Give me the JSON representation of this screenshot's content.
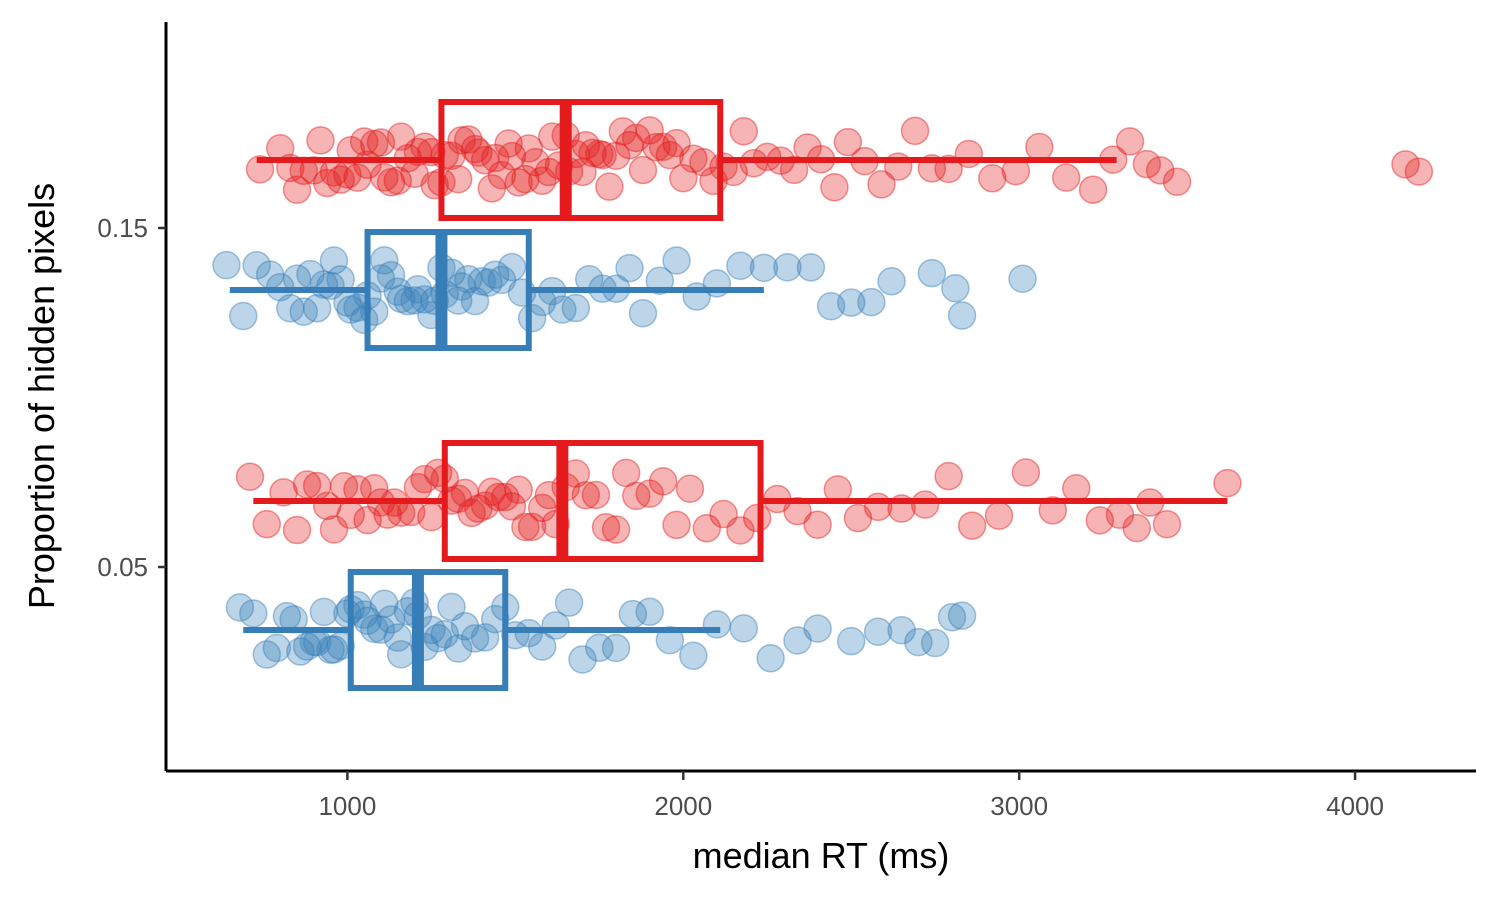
{
  "chart_data": {
    "type": "scatter",
    "subtype": "horizontal-boxplot-with-jittered-points",
    "title": "",
    "xlabel": "median RT (ms)",
    "ylabel": "Proportion of hidden pixels",
    "xlim": [
      460,
      4360
    ],
    "x_ticks": [
      1000,
      2000,
      3000,
      4000
    ],
    "y_ticks": [
      "0.15",
      "0.05"
    ],
    "grid": false,
    "legend": "none",
    "colors": {
      "red": "#e41a1c",
      "blue": "#377eb8"
    },
    "groups": [
      {
        "proportion": "0.15",
        "color_key": "red",
        "box": {
          "whisker_low": 730,
          "q1": 1280,
          "median": 1650,
          "q3": 2110,
          "whisker_high": 3290
        },
        "points": [
          740,
          800,
          830,
          850,
          870,
          900,
          920,
          940,
          960,
          980,
          1000,
          1010,
          1030,
          1050,
          1060,
          1080,
          1100,
          1110,
          1130,
          1150,
          1160,
          1180,
          1200,
          1210,
          1230,
          1250,
          1260,
          1280,
          1290,
          1310,
          1330,
          1340,
          1360,
          1380,
          1390,
          1410,
          1430,
          1440,
          1460,
          1480,
          1490,
          1510,
          1530,
          1540,
          1560,
          1580,
          1600,
          1610,
          1630,
          1650,
          1660,
          1680,
          1700,
          1710,
          1730,
          1750,
          1760,
          1780,
          1800,
          1820,
          1840,
          1860,
          1880,
          1900,
          1920,
          1940,
          1960,
          1980,
          2000,
          2030,
          2060,
          2090,
          2120,
          2150,
          2180,
          2210,
          2250,
          2290,
          2330,
          2370,
          2410,
          2450,
          2490,
          2540,
          2590,
          2640,
          2690,
          2740,
          2790,
          2850,
          2920,
          2990,
          3060,
          3140,
          3220,
          3280,
          3330,
          3380,
          3420,
          3470,
          4150,
          4190
        ]
      },
      {
        "proportion": "0.15",
        "color_key": "blue",
        "box": {
          "whisker_low": 650,
          "q1": 1060,
          "median": 1280,
          "q3": 1540,
          "whisker_high": 2240
        },
        "points": [
          640,
          690,
          730,
          770,
          800,
          830,
          850,
          870,
          890,
          910,
          930,
          950,
          960,
          980,
          1000,
          1010,
          1030,
          1050,
          1060,
          1080,
          1100,
          1110,
          1130,
          1150,
          1160,
          1180,
          1200,
          1210,
          1230,
          1250,
          1260,
          1280,
          1290,
          1310,
          1330,
          1340,
          1360,
          1380,
          1400,
          1420,
          1440,
          1460,
          1490,
          1520,
          1550,
          1580,
          1610,
          1640,
          1680,
          1720,
          1760,
          1800,
          1840,
          1880,
          1930,
          1980,
          2040,
          2100,
          2170,
          2240,
          2310,
          2380,
          2440,
          2500,
          2560,
          2620,
          2740,
          2810,
          2830,
          3010
        ]
      },
      {
        "proportion": "0.05",
        "color_key": "red",
        "box": {
          "whisker_low": 720,
          "q1": 1290,
          "median": 1640,
          "q3": 2230,
          "whisker_high": 3620
        },
        "points": [
          710,
          760,
          810,
          850,
          880,
          910,
          940,
          960,
          990,
          1010,
          1030,
          1060,
          1080,
          1100,
          1120,
          1140,
          1160,
          1190,
          1210,
          1230,
          1250,
          1270,
          1290,
          1310,
          1330,
          1350,
          1370,
          1390,
          1410,
          1430,
          1450,
          1470,
          1490,
          1510,
          1530,
          1550,
          1580,
          1600,
          1620,
          1650,
          1680,
          1710,
          1740,
          1770,
          1800,
          1830,
          1860,
          1900,
          1940,
          1980,
          2020,
          2070,
          2120,
          2170,
          2220,
          2280,
          2340,
          2400,
          2460,
          2520,
          2580,
          2650,
          2720,
          2790,
          2860,
          2940,
          3020,
          3100,
          3170,
          3240,
          3300,
          3350,
          3390,
          3440,
          3620
        ]
      },
      {
        "proportion": "0.05",
        "color_key": "blue",
        "box": {
          "whisker_low": 690,
          "q1": 1010,
          "median": 1210,
          "q3": 1470,
          "whisker_high": 2110
        },
        "points": [
          680,
          720,
          760,
          790,
          820,
          840,
          860,
          880,
          900,
          910,
          930,
          950,
          960,
          980,
          1000,
          1010,
          1030,
          1050,
          1060,
          1080,
          1100,
          1110,
          1130,
          1150,
          1160,
          1180,
          1200,
          1210,
          1230,
          1250,
          1270,
          1290,
          1310,
          1330,
          1350,
          1380,
          1410,
          1440,
          1470,
          1500,
          1540,
          1580,
          1620,
          1660,
          1700,
          1750,
          1800,
          1850,
          1900,
          1960,
          2030,
          2100,
          2180,
          2260,
          2340,
          2400,
          2500,
          2580,
          2650,
          2700,
          2750,
          2800,
          2830
        ]
      }
    ]
  }
}
